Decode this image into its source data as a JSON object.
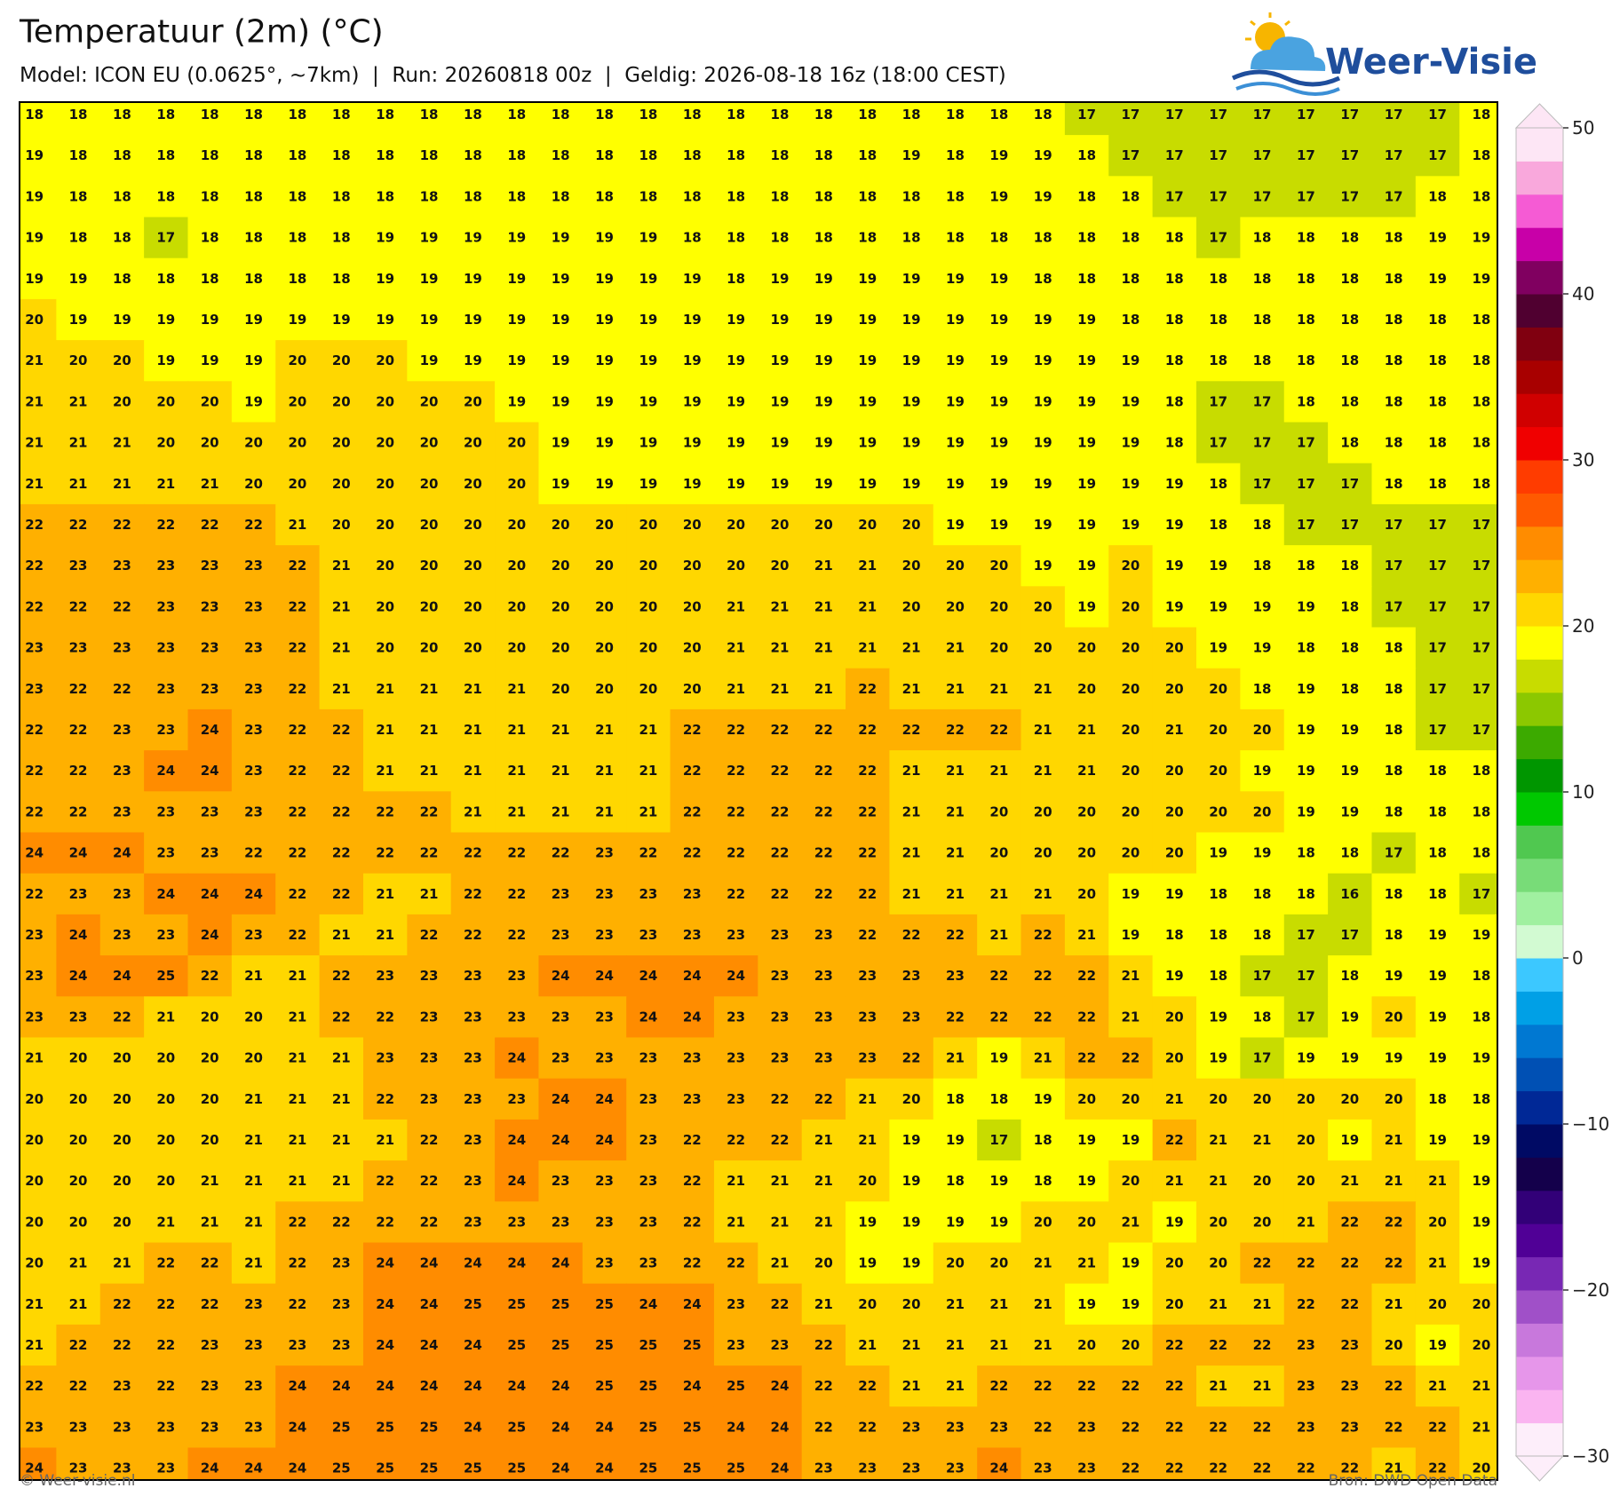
{
  "header": {
    "title": "Temperatuur (2m) (°C)",
    "subtitle": "Model: ICON EU (0.0625°, ~7km)  |  Run: 20260818 00z  |  Geldig: 2026-08-18 16z (18:00 CEST)"
  },
  "logo": {
    "text": "Weer-Visie"
  },
  "map": {
    "values": [
      [
        18,
        18,
        18,
        18,
        18,
        18,
        18,
        18,
        18,
        18,
        18,
        18,
        18,
        18,
        18,
        18,
        18,
        18,
        18,
        18,
        18,
        18,
        18,
        18,
        17,
        17,
        17,
        17,
        17,
        17,
        17,
        17,
        17,
        18
      ],
      [
        19,
        18,
        18,
        18,
        18,
        18,
        18,
        18,
        18,
        18,
        18,
        18,
        18,
        18,
        18,
        18,
        18,
        18,
        18,
        18,
        19,
        18,
        19,
        19,
        18,
        17,
        17,
        17,
        17,
        17,
        17,
        17,
        17,
        18
      ],
      [
        19,
        18,
        18,
        18,
        18,
        18,
        18,
        18,
        18,
        18,
        18,
        18,
        18,
        18,
        18,
        18,
        18,
        18,
        18,
        18,
        18,
        18,
        19,
        19,
        18,
        18,
        17,
        17,
        17,
        17,
        17,
        17,
        18,
        18
      ],
      [
        19,
        18,
        18,
        17,
        18,
        18,
        18,
        18,
        19,
        19,
        19,
        19,
        19,
        19,
        19,
        18,
        18,
        18,
        18,
        18,
        18,
        18,
        18,
        18,
        18,
        18,
        18,
        17,
        18,
        18,
        18,
        18,
        19,
        19
      ],
      [
        19,
        19,
        18,
        18,
        18,
        18,
        18,
        18,
        19,
        19,
        19,
        19,
        19,
        19,
        19,
        19,
        18,
        19,
        19,
        19,
        19,
        19,
        19,
        18,
        18,
        18,
        18,
        18,
        18,
        18,
        18,
        18,
        19,
        19
      ],
      [
        20,
        19,
        19,
        19,
        19,
        19,
        19,
        19,
        19,
        19,
        19,
        19,
        19,
        19,
        19,
        19,
        19,
        19,
        19,
        19,
        19,
        19,
        19,
        19,
        19,
        18,
        18,
        18,
        18,
        18,
        18,
        18,
        18,
        18
      ],
      [
        21,
        20,
        20,
        19,
        19,
        19,
        20,
        20,
        20,
        19,
        19,
        19,
        19,
        19,
        19,
        19,
        19,
        19,
        19,
        19,
        19,
        19,
        19,
        19,
        19,
        19,
        18,
        18,
        18,
        18,
        18,
        18,
        18,
        18
      ],
      [
        21,
        21,
        20,
        20,
        20,
        19,
        20,
        20,
        20,
        20,
        20,
        19,
        19,
        19,
        19,
        19,
        19,
        19,
        19,
        19,
        19,
        19,
        19,
        19,
        19,
        19,
        18,
        17,
        17,
        18,
        18,
        18,
        18,
        18
      ],
      [
        21,
        21,
        21,
        20,
        20,
        20,
        20,
        20,
        20,
        20,
        20,
        20,
        19,
        19,
        19,
        19,
        19,
        19,
        19,
        19,
        19,
        19,
        19,
        19,
        19,
        19,
        18,
        17,
        17,
        17,
        18,
        18,
        18,
        18
      ],
      [
        21,
        21,
        21,
        21,
        21,
        20,
        20,
        20,
        20,
        20,
        20,
        20,
        19,
        19,
        19,
        19,
        19,
        19,
        19,
        19,
        19,
        19,
        19,
        19,
        19,
        19,
        19,
        18,
        17,
        17,
        17,
        18,
        18,
        18
      ],
      [
        22,
        22,
        22,
        22,
        22,
        22,
        21,
        20,
        20,
        20,
        20,
        20,
        20,
        20,
        20,
        20,
        20,
        20,
        20,
        20,
        20,
        19,
        19,
        19,
        19,
        19,
        19,
        18,
        18,
        17,
        17,
        17,
        17,
        17
      ],
      [
        22,
        23,
        23,
        23,
        23,
        23,
        22,
        21,
        20,
        20,
        20,
        20,
        20,
        20,
        20,
        20,
        20,
        20,
        21,
        21,
        20,
        20,
        20,
        19,
        19,
        20,
        19,
        19,
        18,
        18,
        18,
        17,
        17,
        17
      ],
      [
        22,
        22,
        22,
        23,
        23,
        23,
        22,
        21,
        20,
        20,
        20,
        20,
        20,
        20,
        20,
        20,
        21,
        21,
        21,
        21,
        20,
        20,
        20,
        20,
        19,
        20,
        19,
        19,
        19,
        19,
        18,
        17,
        17,
        17
      ],
      [
        23,
        23,
        23,
        23,
        23,
        23,
        22,
        21,
        20,
        20,
        20,
        20,
        20,
        20,
        20,
        20,
        21,
        21,
        21,
        21,
        21,
        21,
        20,
        20,
        20,
        20,
        20,
        19,
        19,
        18,
        18,
        18,
        17,
        17
      ],
      [
        23,
        22,
        22,
        23,
        23,
        23,
        22,
        21,
        21,
        21,
        21,
        21,
        20,
        20,
        20,
        20,
        21,
        21,
        21,
        22,
        21,
        21,
        21,
        21,
        20,
        20,
        20,
        20,
        18,
        19,
        18,
        18,
        17,
        17
      ],
      [
        22,
        22,
        23,
        23,
        24,
        23,
        22,
        22,
        21,
        21,
        21,
        21,
        21,
        21,
        21,
        22,
        22,
        22,
        22,
        22,
        22,
        22,
        22,
        21,
        21,
        20,
        21,
        20,
        20,
        19,
        19,
        18,
        17,
        17
      ],
      [
        22,
        22,
        23,
        24,
        24,
        23,
        22,
        22,
        21,
        21,
        21,
        21,
        21,
        21,
        21,
        22,
        22,
        22,
        22,
        22,
        21,
        21,
        21,
        21,
        21,
        20,
        20,
        20,
        19,
        19,
        19,
        18,
        18,
        18
      ],
      [
        22,
        22,
        23,
        23,
        23,
        23,
        22,
        22,
        22,
        22,
        21,
        21,
        21,
        21,
        21,
        22,
        22,
        22,
        22,
        22,
        21,
        21,
        20,
        20,
        20,
        20,
        20,
        20,
        20,
        19,
        19,
        18,
        18,
        18
      ],
      [
        24,
        24,
        24,
        23,
        23,
        22,
        22,
        22,
        22,
        22,
        22,
        22,
        22,
        23,
        22,
        22,
        22,
        22,
        22,
        22,
        21,
        21,
        20,
        20,
        20,
        20,
        20,
        19,
        19,
        18,
        18,
        17,
        18,
        18
      ],
      [
        22,
        23,
        23,
        24,
        24,
        24,
        22,
        22,
        21,
        21,
        22,
        22,
        23,
        23,
        23,
        23,
        22,
        22,
        22,
        22,
        21,
        21,
        21,
        21,
        20,
        19,
        19,
        18,
        18,
        18,
        16,
        18,
        18,
        17
      ],
      [
        23,
        24,
        23,
        23,
        24,
        23,
        22,
        21,
        21,
        22,
        22,
        22,
        23,
        23,
        23,
        23,
        23,
        23,
        23,
        22,
        22,
        22,
        21,
        22,
        21,
        19,
        18,
        18,
        18,
        17,
        17,
        18,
        19,
        19
      ],
      [
        23,
        24,
        24,
        25,
        22,
        21,
        21,
        22,
        23,
        23,
        23,
        23,
        24,
        24,
        24,
        24,
        24,
        23,
        23,
        23,
        23,
        23,
        22,
        22,
        22,
        21,
        19,
        18,
        17,
        17,
        18,
        19,
        19,
        18
      ],
      [
        23,
        23,
        22,
        21,
        20,
        20,
        21,
        22,
        22,
        23,
        23,
        23,
        23,
        23,
        24,
        24,
        23,
        23,
        23,
        23,
        23,
        22,
        22,
        22,
        22,
        21,
        20,
        19,
        18,
        17,
        19,
        20,
        19,
        18
      ],
      [
        21,
        20,
        20,
        20,
        20,
        20,
        21,
        21,
        23,
        23,
        23,
        24,
        23,
        23,
        23,
        23,
        23,
        23,
        23,
        23,
        22,
        21,
        19,
        21,
        22,
        22,
        20,
        19,
        17,
        19,
        19,
        19,
        19,
        19
      ],
      [
        20,
        20,
        20,
        20,
        20,
        21,
        21,
        21,
        22,
        23,
        23,
        23,
        24,
        24,
        23,
        23,
        23,
        22,
        22,
        21,
        20,
        18,
        18,
        19,
        20,
        20,
        21,
        20,
        20,
        20,
        20,
        20,
        18,
        18
      ],
      [
        20,
        20,
        20,
        20,
        20,
        21,
        21,
        21,
        21,
        22,
        23,
        24,
        24,
        24,
        23,
        22,
        22,
        22,
        21,
        21,
        19,
        19,
        17,
        18,
        19,
        19,
        22,
        21,
        21,
        20,
        19,
        21,
        19,
        19
      ],
      [
        20,
        20,
        20,
        20,
        21,
        21,
        21,
        21,
        22,
        22,
        23,
        24,
        23,
        23,
        23,
        22,
        21,
        21,
        21,
        20,
        19,
        18,
        19,
        18,
        19,
        20,
        21,
        21,
        20,
        20,
        21,
        21,
        21,
        19
      ],
      [
        20,
        20,
        20,
        21,
        21,
        21,
        22,
        22,
        22,
        22,
        23,
        23,
        23,
        23,
        23,
        22,
        21,
        21,
        21,
        19,
        19,
        19,
        19,
        20,
        20,
        21,
        19,
        20,
        20,
        21,
        22,
        22,
        20,
        19
      ],
      [
        20,
        21,
        21,
        22,
        22,
        21,
        22,
        23,
        24,
        24,
        24,
        24,
        24,
        23,
        23,
        22,
        22,
        21,
        20,
        19,
        19,
        20,
        20,
        21,
        21,
        19,
        20,
        20,
        22,
        22,
        22,
        22,
        21,
        19
      ],
      [
        21,
        21,
        22,
        22,
        22,
        23,
        22,
        23,
        24,
        24,
        25,
        25,
        25,
        25,
        24,
        24,
        23,
        22,
        21,
        20,
        20,
        21,
        21,
        21,
        19,
        19,
        20,
        21,
        21,
        22,
        22,
        21,
        20,
        20
      ],
      [
        21,
        22,
        22,
        22,
        23,
        23,
        23,
        23,
        24,
        24,
        24,
        25,
        25,
        25,
        25,
        25,
        23,
        23,
        22,
        21,
        21,
        21,
        21,
        21,
        20,
        20,
        22,
        22,
        22,
        23,
        23,
        20,
        19,
        20
      ],
      [
        22,
        22,
        23,
        22,
        23,
        23,
        24,
        24,
        24,
        24,
        24,
        24,
        24,
        25,
        25,
        24,
        25,
        24,
        22,
        22,
        21,
        21,
        22,
        22,
        22,
        22,
        22,
        21,
        21,
        23,
        23,
        22,
        21,
        21
      ],
      [
        23,
        23,
        23,
        23,
        23,
        23,
        24,
        25,
        25,
        25,
        24,
        25,
        24,
        24,
        25,
        25,
        24,
        24,
        22,
        22,
        23,
        23,
        23,
        22,
        23,
        22,
        22,
        22,
        22,
        23,
        23,
        22,
        22,
        21
      ],
      [
        24,
        23,
        23,
        23,
        24,
        24,
        24,
        25,
        25,
        25,
        25,
        25,
        24,
        24,
        25,
        25,
        25,
        24,
        23,
        23,
        23,
        23,
        24,
        23,
        23,
        22,
        22,
        22,
        22,
        22,
        22,
        21,
        22,
        20
      ]
    ]
  },
  "colorbar": {
    "lim": [
      -30,
      50
    ],
    "ticks": [
      50,
      40,
      30,
      20,
      10,
      0,
      {
        "value": -10,
        "label": "−10"
      },
      {
        "value": -20,
        "label": "−20"
      },
      {
        "value": -30,
        "label": "−30"
      }
    ],
    "colors": [
      "#fdeefa",
      "#fab4f0",
      "#e696ea",
      "#c878dc",
      "#a050c8",
      "#7828b4",
      "#500096",
      "#320078",
      "#14004b",
      "#000a64",
      "#002896",
      "#0050b4",
      "#0078d2",
      "#00a0e6",
      "#3cc8ff",
      "#d2fad2",
      "#a0f0a0",
      "#78dc78",
      "#50c850",
      "#00c800",
      "#009600",
      "#3caa00",
      "#8cc800",
      "#c8dc00",
      "#ffff00",
      "#ffd700",
      "#ffb000",
      "#ff8c00",
      "#ff5a00",
      "#ff3c00",
      "#f00000",
      "#d00000",
      "#a80000",
      "#800010",
      "#500030",
      "#800060",
      "#c800a8",
      "#f55bd4",
      "#f9a8dc",
      "#fde6f5"
    ]
  },
  "footer": {
    "left": "© Weer-visie.nl",
    "right": "Bron: DWD Open Data"
  }
}
